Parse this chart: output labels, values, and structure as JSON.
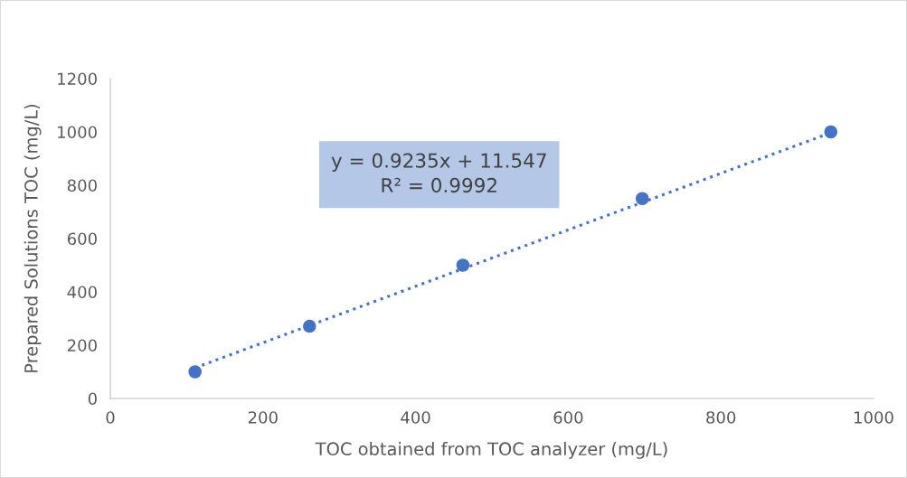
{
  "chart_data": {
    "type": "scatter",
    "xlabel": "TOC obtained from TOC analyzer (mg/L)",
    "ylabel": "Prepared Solutions TOC (mg/L)",
    "xlim": [
      0,
      1000
    ],
    "xticks": [
      0,
      200,
      400,
      600,
      800,
      1000
    ],
    "ylim": [
      0,
      1200
    ],
    "yticks": [
      0,
      200,
      400,
      600,
      800,
      1000,
      1200
    ],
    "grid": false,
    "legend": false,
    "series": [
      {
        "color": "#4472c4",
        "marker": "circle",
        "x": [
          111,
          261,
          462,
          697,
          944
        ],
        "values": [
          100,
          271,
          500,
          750,
          1000
        ]
      },
      {
        "type": "line",
        "color": "#4472c4",
        "marker": "none",
        "line_style": "dotted",
        "x": [
          111,
          944
        ],
        "values": [
          115,
          997
        ]
      }
    ],
    "annotations": [
      "y = 0.9235x + 11.547\nR² = 0.9992"
    ]
  }
}
